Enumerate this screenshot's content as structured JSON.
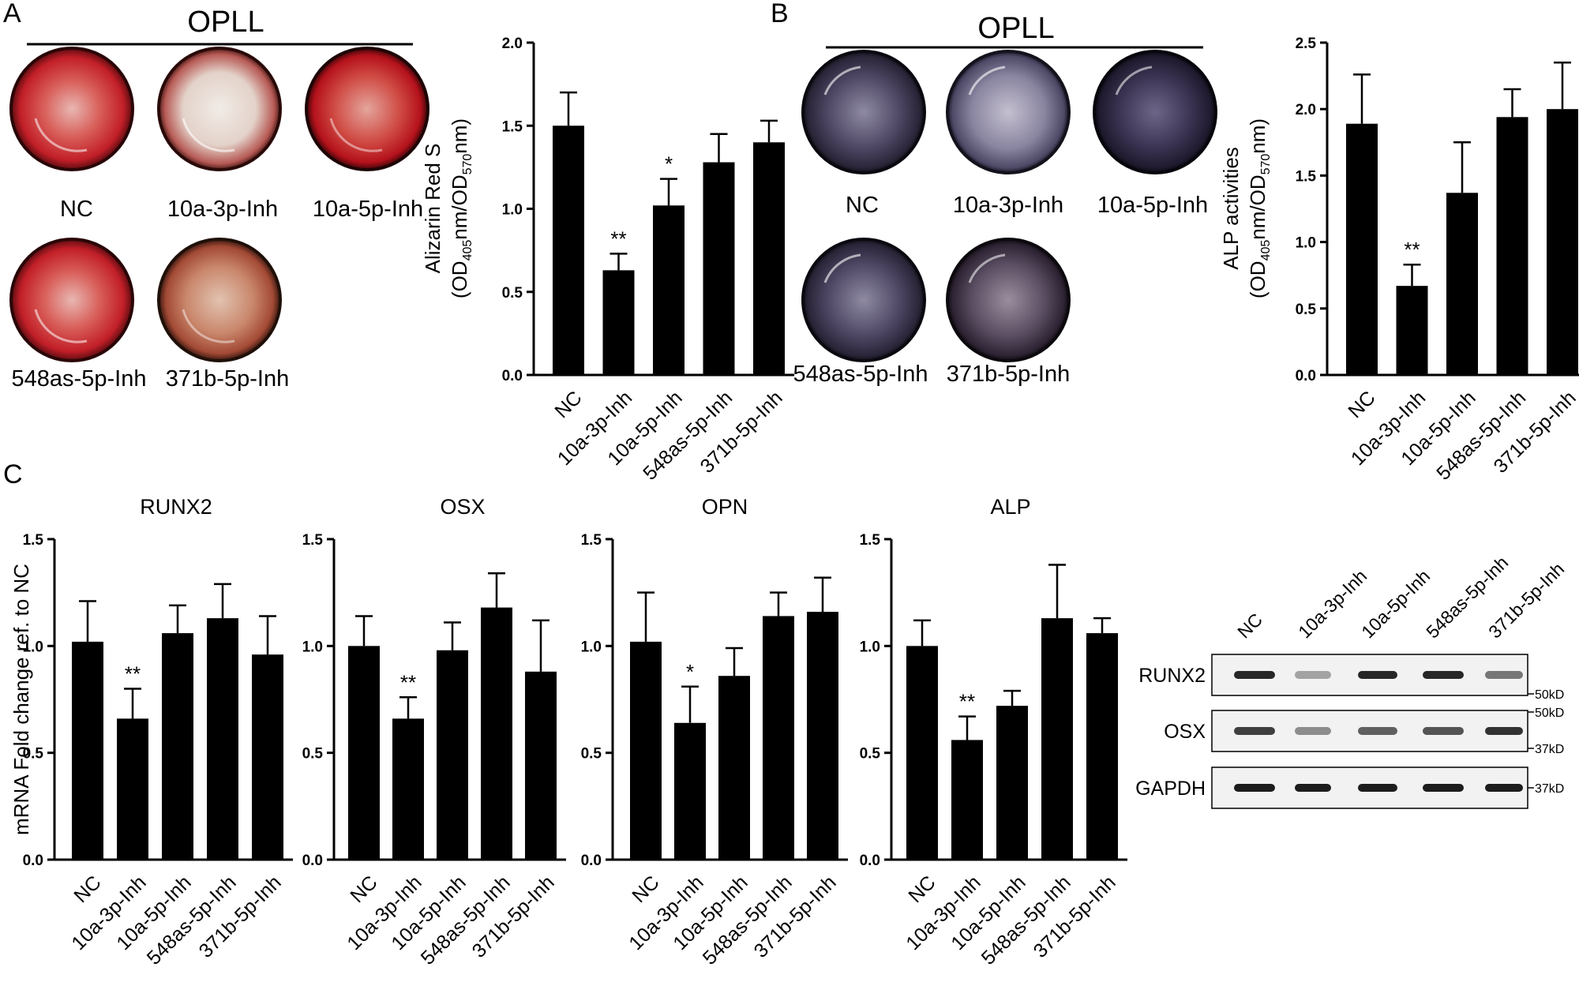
{
  "panels": {
    "A": {
      "letter": "A",
      "header": "OPLL",
      "wells": [
        {
          "label": "NC",
          "stain": "alizarin-red"
        },
        {
          "label": "10a-3p-Inh",
          "stain": "alizarin-red"
        },
        {
          "label": "10a-5p-Inh",
          "stain": "alizarin-red"
        },
        {
          "label": "548as-5p-Inh",
          "stain": "alizarin-red"
        },
        {
          "label": "371b-5p-Inh",
          "stain": "alizarin-red"
        }
      ]
    },
    "B": {
      "letter": "B",
      "header": "OPLL",
      "wells": [
        {
          "label": "NC",
          "stain": "alp-purple"
        },
        {
          "label": "10a-3p-Inh",
          "stain": "alp-purple"
        },
        {
          "label": "10a-5p-Inh",
          "stain": "alp-purple"
        },
        {
          "label": "548as-5p-Inh",
          "stain": "alp-purple"
        },
        {
          "label": "371b-5p-Inh",
          "stain": "alp-purple"
        }
      ]
    },
    "C": {
      "letter": "C",
      "shared_ylabel": "mRNA Fold change ref. to NC"
    }
  },
  "colors": {
    "bar": "#000000",
    "red_stain": "#c8202a",
    "purple_stain": "#3a3550"
  },
  "chart_data": [
    {
      "id": "alizarin",
      "type": "bar",
      "title": "",
      "categories": [
        "NC",
        "10a-3p-Inh",
        "10a-5p-Inh",
        "548as-5p-Inh",
        "371b-5p-Inh"
      ],
      "values": [
        1.5,
        0.63,
        1.02,
        1.28,
        1.4
      ],
      "errors": [
        0.2,
        0.1,
        0.16,
        0.17,
        0.13
      ],
      "significance": [
        "",
        "**",
        "*",
        "",
        ""
      ],
      "ylim": [
        0,
        2.0
      ],
      "yticks": [
        "0.0",
        "0.5",
        "1.0",
        "1.5",
        "2.0"
      ],
      "ylabel_main": "Alizarin Red S",
      "ylabel_parts": [
        "(OD",
        "405",
        "nm/OD",
        "570",
        "nm)"
      ],
      "xlabel": ""
    },
    {
      "id": "alp_activity",
      "type": "bar",
      "title": "",
      "categories": [
        "NC",
        "10a-3p-Inh",
        "10a-5p-Inh",
        "548as-5p-Inh",
        "371b-5p-Inh"
      ],
      "values": [
        1.89,
        0.67,
        1.37,
        1.94,
        2.0
      ],
      "errors": [
        0.37,
        0.16,
        0.38,
        0.21,
        0.35
      ],
      "significance": [
        "",
        "**",
        "",
        "",
        ""
      ],
      "ylim": [
        0,
        2.5
      ],
      "yticks": [
        "0.0",
        "0.5",
        "1.0",
        "1.5",
        "2.0",
        "2.5"
      ],
      "ylabel_main": "ALP activities",
      "ylabel_parts": [
        "(OD",
        "405",
        "nm/OD",
        "570",
        "nm)"
      ],
      "xlabel": ""
    },
    {
      "id": "runx2",
      "type": "bar",
      "title": "RUNX2",
      "categories": [
        "NC",
        "10a-3p-Inh",
        "10a-5p-Inh",
        "548as-5p-Inh",
        "371b-5p-Inh"
      ],
      "values": [
        1.02,
        0.66,
        1.06,
        1.13,
        0.96
      ],
      "errors": [
        0.19,
        0.14,
        0.13,
        0.16,
        0.18
      ],
      "significance": [
        "",
        "**",
        "",
        "",
        ""
      ],
      "ylim": [
        0,
        1.5
      ],
      "yticks": [
        "0.0",
        "0.5",
        "1.0",
        "1.5"
      ],
      "ylabel": "mRNA Fold change ref. to NC",
      "xlabel": ""
    },
    {
      "id": "osx",
      "type": "bar",
      "title": "OSX",
      "categories": [
        "NC",
        "10a-3p-Inh",
        "10a-5p-Inh",
        "548as-5p-Inh",
        "371b-5p-Inh"
      ],
      "values": [
        1.0,
        0.66,
        0.98,
        1.18,
        0.88
      ],
      "errors": [
        0.14,
        0.1,
        0.13,
        0.16,
        0.24
      ],
      "significance": [
        "",
        "**",
        "",
        "",
        ""
      ],
      "ylim": [
        0,
        1.5
      ],
      "yticks": [
        "0.0",
        "0.5",
        "1.0",
        "1.5"
      ],
      "ylabel": "",
      "xlabel": ""
    },
    {
      "id": "opn",
      "type": "bar",
      "title": "OPN",
      "categories": [
        "NC",
        "10a-3p-Inh",
        "10a-5p-Inh",
        "548as-5p-Inh",
        "371b-5p-Inh"
      ],
      "values": [
        1.02,
        0.64,
        0.86,
        1.14,
        1.16
      ],
      "errors": [
        0.23,
        0.17,
        0.13,
        0.11,
        0.16
      ],
      "significance": [
        "",
        "*",
        "",
        "",
        ""
      ],
      "ylim": [
        0,
        1.5
      ],
      "yticks": [
        "0.0",
        "0.5",
        "1.0",
        "1.5"
      ],
      "ylabel": "",
      "xlabel": ""
    },
    {
      "id": "alp_mrna",
      "type": "bar",
      "title": "ALP",
      "categories": [
        "NC",
        "10a-3p-Inh",
        "10a-5p-Inh",
        "548as-5p-Inh",
        "371b-5p-Inh"
      ],
      "values": [
        1.0,
        0.56,
        0.72,
        1.13,
        1.06
      ],
      "errors": [
        0.12,
        0.11,
        0.07,
        0.25,
        0.07
      ],
      "significance": [
        "",
        "**",
        "",
        "",
        ""
      ],
      "ylim": [
        0,
        1.5
      ],
      "yticks": [
        "0.0",
        "0.5",
        "1.0",
        "1.5"
      ],
      "ylabel": "",
      "xlabel": ""
    }
  ],
  "western_blot": {
    "lanes": [
      "NC",
      "10a-3p-Inh",
      "10a-5p-Inh",
      "548as-5p-Inh",
      "371b-5p-Inh"
    ],
    "rows": [
      {
        "label": "RUNX2",
        "intensity": [
          0.9,
          0.35,
          0.9,
          0.9,
          0.55
        ],
        "markers": [
          "50kD"
        ]
      },
      {
        "label": "OSX",
        "intensity": [
          0.8,
          0.45,
          0.65,
          0.7,
          0.85
        ],
        "markers": [
          "50kD",
          "37kD"
        ]
      },
      {
        "label": "GAPDH",
        "intensity": [
          0.95,
          0.95,
          0.95,
          0.95,
          0.95
        ],
        "markers": [
          "37kD"
        ]
      }
    ]
  }
}
